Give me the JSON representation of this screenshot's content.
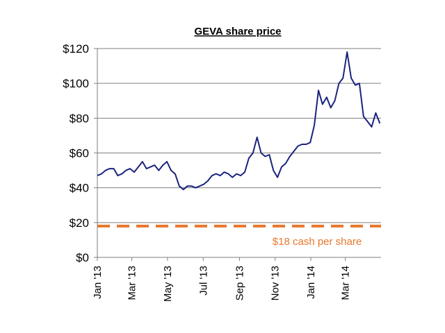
{
  "chart_data": {
    "type": "line",
    "title": "GEVA share price",
    "xlabel": "",
    "ylabel": "",
    "ylim": [
      0,
      120
    ],
    "y_ticks": [
      0,
      20,
      40,
      60,
      80,
      100,
      120
    ],
    "y_tick_labels": [
      "$0",
      "$20",
      "$40",
      "$60",
      "$80",
      "$100",
      "$120"
    ],
    "x_range": [
      "2013-01-01",
      "2014-05-01"
    ],
    "x_ticks": [
      "2013-01-01",
      "2013-03-01",
      "2013-05-01",
      "2013-07-01",
      "2013-09-01",
      "2013-11-01",
      "2014-01-01",
      "2014-03-01"
    ],
    "x_tick_labels": [
      "Jan '13",
      "Mar '13",
      "May '13",
      "Jul '13",
      "Sep '13",
      "Nov '13",
      "Jan '14",
      "Mar '14"
    ],
    "grid": true,
    "series": [
      {
        "name": "",
        "color": "#1a237e",
        "points": [
          [
            "2013-01-01",
            47
          ],
          [
            "2013-01-08",
            48
          ],
          [
            "2013-01-15",
            50
          ],
          [
            "2013-01-22",
            51
          ],
          [
            "2013-01-29",
            51
          ],
          [
            "2013-02-05",
            47
          ],
          [
            "2013-02-12",
            48
          ],
          [
            "2013-02-19",
            50
          ],
          [
            "2013-02-26",
            51
          ],
          [
            "2013-03-05",
            49
          ],
          [
            "2013-03-12",
            52
          ],
          [
            "2013-03-19",
            55
          ],
          [
            "2013-03-26",
            51
          ],
          [
            "2013-04-02",
            52
          ],
          [
            "2013-04-09",
            53
          ],
          [
            "2013-04-16",
            50
          ],
          [
            "2013-04-23",
            53
          ],
          [
            "2013-04-30",
            55
          ],
          [
            "2013-05-07",
            50
          ],
          [
            "2013-05-14",
            48
          ],
          [
            "2013-05-21",
            41
          ],
          [
            "2013-05-28",
            39
          ],
          [
            "2013-06-04",
            41
          ],
          [
            "2013-06-11",
            41
          ],
          [
            "2013-06-18",
            40
          ],
          [
            "2013-06-25",
            41
          ],
          [
            "2013-07-02",
            42
          ],
          [
            "2013-07-09",
            44
          ],
          [
            "2013-07-16",
            47
          ],
          [
            "2013-07-23",
            48
          ],
          [
            "2013-07-30",
            47
          ],
          [
            "2013-08-06",
            49
          ],
          [
            "2013-08-13",
            48
          ],
          [
            "2013-08-20",
            46
          ],
          [
            "2013-08-27",
            48
          ],
          [
            "2013-09-03",
            47
          ],
          [
            "2013-09-10",
            49
          ],
          [
            "2013-09-17",
            57
          ],
          [
            "2013-09-24",
            60
          ],
          [
            "2013-10-01",
            69
          ],
          [
            "2013-10-08",
            60
          ],
          [
            "2013-10-15",
            58
          ],
          [
            "2013-10-22",
            59
          ],
          [
            "2013-10-29",
            50
          ],
          [
            "2013-11-05",
            46
          ],
          [
            "2013-11-12",
            52
          ],
          [
            "2013-11-19",
            54
          ],
          [
            "2013-11-26",
            58
          ],
          [
            "2013-12-03",
            61
          ],
          [
            "2013-12-10",
            64
          ],
          [
            "2013-12-17",
            65
          ],
          [
            "2013-12-24",
            65
          ],
          [
            "2013-12-31",
            66
          ],
          [
            "2014-01-07",
            76
          ],
          [
            "2014-01-14",
            96
          ],
          [
            "2014-01-21",
            88
          ],
          [
            "2014-01-28",
            92
          ],
          [
            "2014-02-04",
            86
          ],
          [
            "2014-02-11",
            90
          ],
          [
            "2014-02-18",
            100
          ],
          [
            "2014-02-25",
            103
          ],
          [
            "2014-03-04",
            118
          ],
          [
            "2014-03-11",
            103
          ],
          [
            "2014-03-18",
            99
          ],
          [
            "2014-03-25",
            100
          ],
          [
            "2014-04-01",
            81
          ],
          [
            "2014-04-08",
            78
          ],
          [
            "2014-04-15",
            75
          ],
          [
            "2014-04-22",
            83
          ],
          [
            "2014-04-29",
            77
          ]
        ]
      }
    ],
    "reference_lines": [
      {
        "y": 18,
        "label": "$18 cash per share",
        "color": "#e8772e",
        "style": "dashed"
      }
    ]
  }
}
